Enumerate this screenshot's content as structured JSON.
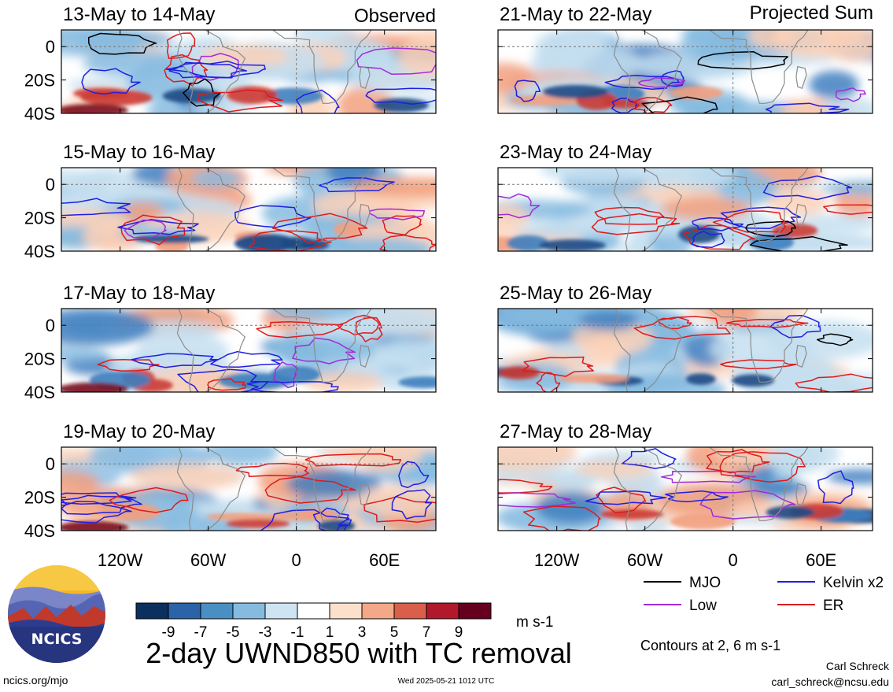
{
  "title": "2-day UWND850 with TC removal",
  "left_header": "Observed",
  "right_header": "Projected Sum",
  "units": "m s-1",
  "contour_note": "Contours at 2, 6 m s-1",
  "author": "Carl Schreck",
  "email": "carl_schreck@ncsu.edu",
  "site": "ncics.org/mjo",
  "timestamp": "Wed 2025-05-21 1012 UTC",
  "logo_text": "NCICS",
  "colors": {
    "MJO": "#000000",
    "Kelvin": "#1f1fe0",
    "Low": "#a02cd8",
    "ER": "#e01a1a",
    "grid": "#777777",
    "land": "#8c8c8c"
  },
  "legend": [
    {
      "key": "MJO",
      "label": "MJO"
    },
    {
      "key": "Kelvin",
      "label": "Kelvin x2"
    },
    {
      "key": "Low",
      "label": "Low"
    },
    {
      "key": "ER",
      "label": "ER"
    }
  ],
  "colorbar": {
    "colors": [
      "#0b2f5e",
      "#2a63a8",
      "#4a8fc4",
      "#86bbe0",
      "#cfe4f2",
      "#ffffff",
      "#fde0cc",
      "#f3a887",
      "#d95f4a",
      "#b2182b",
      "#67001f"
    ],
    "labels": [
      "-9",
      "-7",
      "-5",
      "-3",
      "-1",
      "1",
      "3",
      "5",
      "7",
      "9"
    ]
  },
  "chart_data": {
    "type": "heatmap",
    "variable": "UWND850",
    "lat_ticks": [
      "0",
      "20S",
      "40S"
    ],
    "lon_ticks": [
      "120W",
      "60W",
      "0",
      "60E"
    ],
    "panels": [
      {
        "id": "p1",
        "title": "13-May to 14-May",
        "column": "left",
        "row": 0
      },
      {
        "id": "p2",
        "title": "15-May to 16-May",
        "column": "left",
        "row": 1
      },
      {
        "id": "p3",
        "title": "17-May to 18-May",
        "column": "left",
        "row": 2
      },
      {
        "id": "p4",
        "title": "19-May to 20-May",
        "column": "left",
        "row": 3
      },
      {
        "id": "p5",
        "title": "21-May to 22-May",
        "column": "right",
        "row": 0
      },
      {
        "id": "p6",
        "title": "23-May to 24-May",
        "column": "right",
        "row": 1
      },
      {
        "id": "p7",
        "title": "25-May to 26-May",
        "column": "right",
        "row": 2
      },
      {
        "id": "p8",
        "title": "27-May to 28-May",
        "column": "right",
        "row": 3
      }
    ]
  }
}
